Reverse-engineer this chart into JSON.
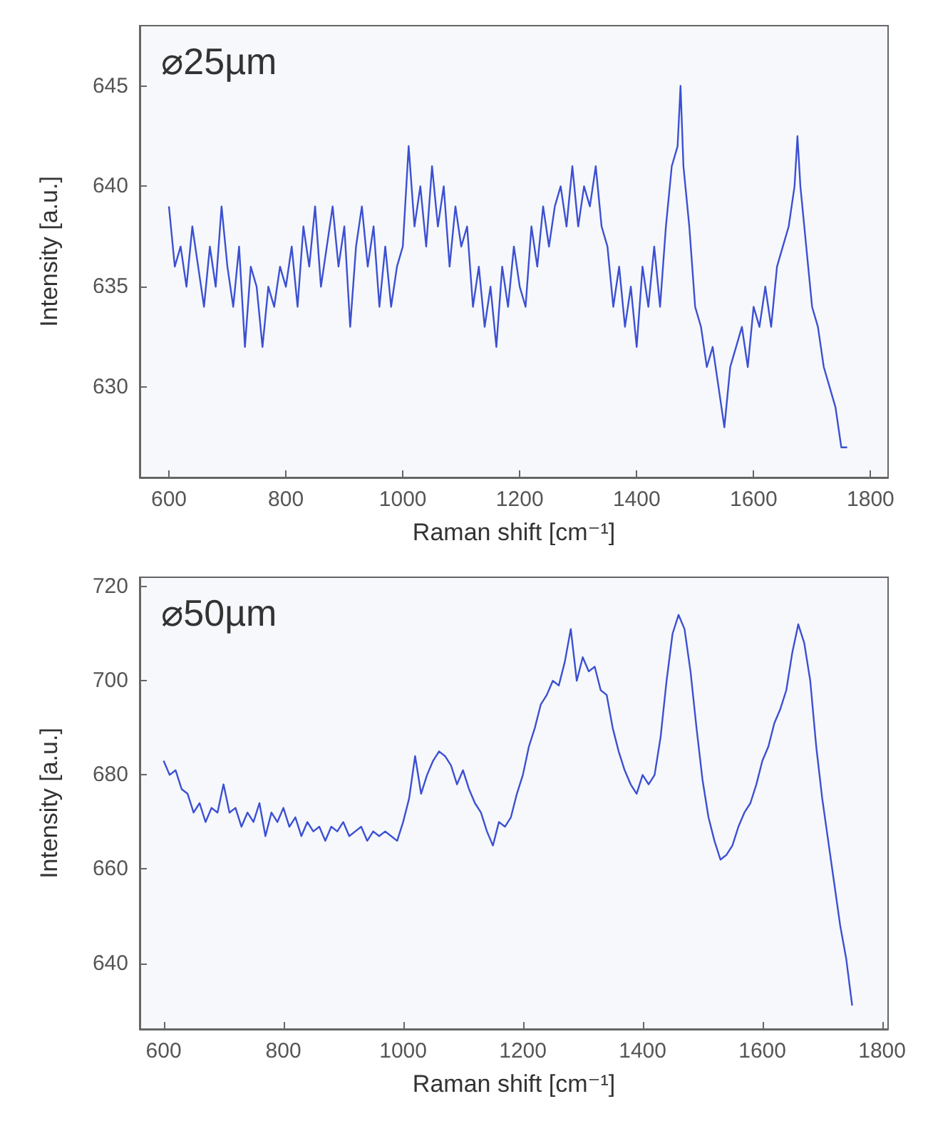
{
  "chart_data": [
    {
      "type": "line",
      "xlabel": "Raman shift [cm⁻¹]",
      "ylabel": "Intensity [a.u.]",
      "annotations": [
        "⌀25µm"
      ],
      "xlim": [
        550,
        1830
      ],
      "ylim": [
        625.5,
        648
      ],
      "xticks": [
        600,
        800,
        1000,
        1200,
        1400,
        1600,
        1800
      ],
      "yticks": [
        630,
        635,
        640,
        645
      ],
      "x": [
        600,
        610,
        620,
        630,
        640,
        650,
        660,
        670,
        680,
        690,
        700,
        710,
        720,
        730,
        740,
        750,
        760,
        770,
        780,
        790,
        800,
        810,
        820,
        830,
        840,
        850,
        860,
        870,
        880,
        890,
        900,
        910,
        920,
        930,
        940,
        950,
        960,
        970,
        980,
        990,
        1000,
        1010,
        1020,
        1030,
        1040,
        1050,
        1060,
        1070,
        1080,
        1090,
        1100,
        1110,
        1120,
        1130,
        1140,
        1150,
        1160,
        1170,
        1180,
        1190,
        1200,
        1210,
        1220,
        1230,
        1240,
        1250,
        1260,
        1270,
        1280,
        1290,
        1300,
        1310,
        1320,
        1330,
        1340,
        1350,
        1360,
        1370,
        1380,
        1390,
        1400,
        1410,
        1420,
        1430,
        1440,
        1450,
        1460,
        1470,
        1475,
        1480,
        1490,
        1500,
        1510,
        1520,
        1530,
        1540,
        1550,
        1560,
        1570,
        1580,
        1590,
        1600,
        1610,
        1620,
        1630,
        1640,
        1650,
        1660,
        1670,
        1675,
        1680,
        1690,
        1700,
        1710,
        1720,
        1730,
        1740,
        1750,
        1760
      ],
      "series": [
        {
          "color": "#3c50d2",
          "values": [
            639,
            636,
            637,
            635,
            638,
            636,
            634,
            637,
            635,
            639,
            636,
            634,
            637,
            632,
            636,
            635,
            632,
            635,
            634,
            636,
            635,
            637,
            634,
            638,
            636,
            639,
            635,
            637,
            639,
            636,
            638,
            633,
            637,
            639,
            636,
            638,
            634,
            637,
            634,
            636,
            637,
            642,
            638,
            640,
            637,
            641,
            638,
            640,
            636,
            639,
            637,
            638,
            634,
            636,
            633,
            635,
            632,
            636,
            634,
            637,
            635,
            634,
            638,
            636,
            639,
            637,
            639,
            640,
            638,
            641,
            638,
            640,
            639,
            641,
            638,
            637,
            634,
            636,
            633,
            635,
            632,
            636,
            634,
            637,
            634,
            638,
            641,
            642,
            645,
            641,
            638,
            634,
            633,
            631,
            632,
            630,
            628,
            631,
            632,
            633,
            631,
            634,
            633,
            635,
            633,
            636,
            637,
            638,
            640,
            642.5,
            640,
            637,
            634,
            633,
            631,
            630,
            629,
            627,
            627
          ]
        }
      ]
    },
    {
      "type": "line",
      "xlabel": "Raman shift [cm⁻¹]",
      "ylabel": "Intensity [a.u.]",
      "annotations": [
        "⌀50µm"
      ],
      "xlim": [
        560,
        1810
      ],
      "ylim": [
        626,
        722
      ],
      "xticks": [
        600,
        800,
        1000,
        1200,
        1400,
        1600,
        1800
      ],
      "yticks": [
        640,
        660,
        680,
        700,
        720
      ],
      "x": [
        600,
        610,
        620,
        630,
        640,
        650,
        660,
        670,
        680,
        690,
        700,
        710,
        720,
        730,
        740,
        750,
        760,
        770,
        780,
        790,
        800,
        810,
        820,
        830,
        840,
        850,
        860,
        870,
        880,
        890,
        900,
        910,
        920,
        930,
        940,
        950,
        960,
        970,
        980,
        990,
        1000,
        1010,
        1020,
        1030,
        1040,
        1050,
        1060,
        1070,
        1080,
        1090,
        1100,
        1110,
        1120,
        1130,
        1140,
        1150,
        1160,
        1170,
        1180,
        1190,
        1200,
        1210,
        1220,
        1230,
        1240,
        1250,
        1260,
        1270,
        1280,
        1290,
        1300,
        1310,
        1320,
        1330,
        1340,
        1350,
        1360,
        1370,
        1380,
        1390,
        1400,
        1410,
        1420,
        1430,
        1440,
        1450,
        1460,
        1470,
        1480,
        1490,
        1500,
        1510,
        1520,
        1530,
        1540,
        1550,
        1560,
        1570,
        1580,
        1590,
        1600,
        1610,
        1620,
        1630,
        1640,
        1650,
        1660,
        1670,
        1680,
        1690,
        1700,
        1710,
        1720,
        1730,
        1740,
        1750
      ],
      "series": [
        {
          "color": "#3c50d2",
          "values": [
            683,
            680,
            681,
            677,
            676,
            672,
            674,
            670,
            673,
            672,
            678,
            672,
            673,
            669,
            672,
            670,
            674,
            667,
            672,
            670,
            673,
            669,
            671,
            667,
            670,
            668,
            669,
            666,
            669,
            668,
            670,
            667,
            668,
            669,
            666,
            668,
            667,
            668,
            667,
            666,
            670,
            675,
            684,
            676,
            680,
            683,
            685,
            684,
            682,
            678,
            681,
            677,
            674,
            672,
            668,
            665,
            670,
            669,
            671,
            676,
            680,
            686,
            690,
            695,
            697,
            700,
            699,
            704,
            711,
            700,
            705,
            702,
            703,
            698,
            697,
            690,
            685,
            681,
            678,
            676,
            680,
            678,
            680,
            688,
            700,
            710,
            714,
            711,
            702,
            690,
            679,
            671,
            666,
            662,
            663,
            665,
            669,
            672,
            674,
            678,
            683,
            686,
            691,
            694,
            698,
            706,
            712,
            708,
            700,
            686,
            675,
            666,
            657,
            648,
            641,
            631
          ]
        }
      ]
    }
  ]
}
